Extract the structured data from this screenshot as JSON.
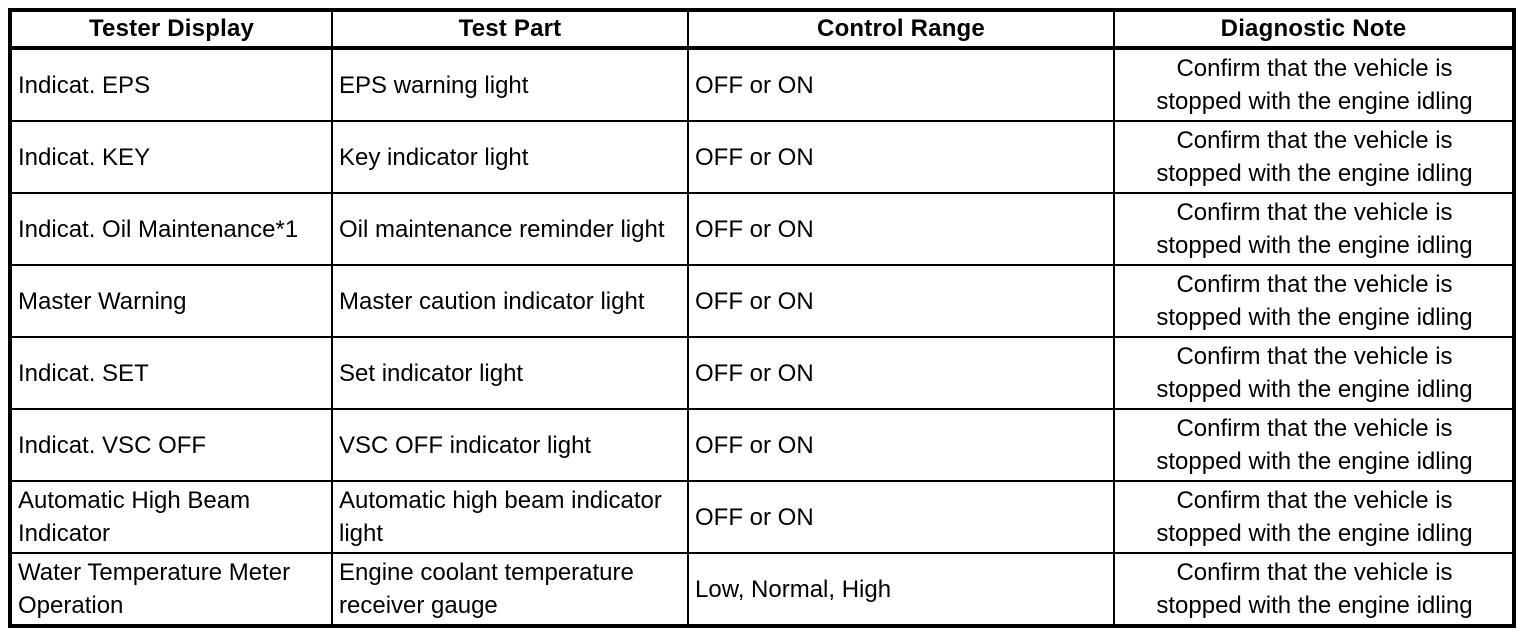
{
  "colors": {
    "background": "#ffffff",
    "border": "#000000",
    "text": "#000000"
  },
  "table": {
    "headers": [
      "Tester Display",
      "Test Part",
      "Control Range",
      "Diagnostic Note"
    ],
    "rows": [
      [
        "Indicat. EPS",
        "EPS warning light",
        "OFF or ON",
        "Confirm that the vehicle is stopped with the engine idling"
      ],
      [
        "Indicat. KEY",
        "Key indicator light",
        "OFF or ON",
        "Confirm that the vehicle is stopped with the engine idling"
      ],
      [
        "Indicat. Oil Maintenance*1",
        "Oil maintenance reminder light",
        "OFF or ON",
        "Confirm that the vehicle is stopped with the engine idling"
      ],
      [
        "Master Warning",
        "Master caution indicator light",
        "OFF or ON",
        "Confirm that the vehicle is stopped with the engine idling"
      ],
      [
        "Indicat. SET",
        "Set indicator light",
        "OFF or ON",
        "Confirm that the vehicle is stopped with the engine idling"
      ],
      [
        "Indicat. VSC OFF",
        "VSC OFF indicator light",
        "OFF or ON",
        "Confirm that the vehicle is stopped with the engine idling"
      ],
      [
        "Automatic High Beam Indicator",
        "Automatic high beam indicator light",
        "OFF or ON",
        "Confirm that the vehicle is stopped with the engine idling"
      ],
      [
        "Water Temperature Meter Operation",
        "Engine coolant temperature receiver gauge",
        "Low, Normal, High",
        "Confirm that the vehicle is stopped with the engine idling"
      ]
    ]
  }
}
